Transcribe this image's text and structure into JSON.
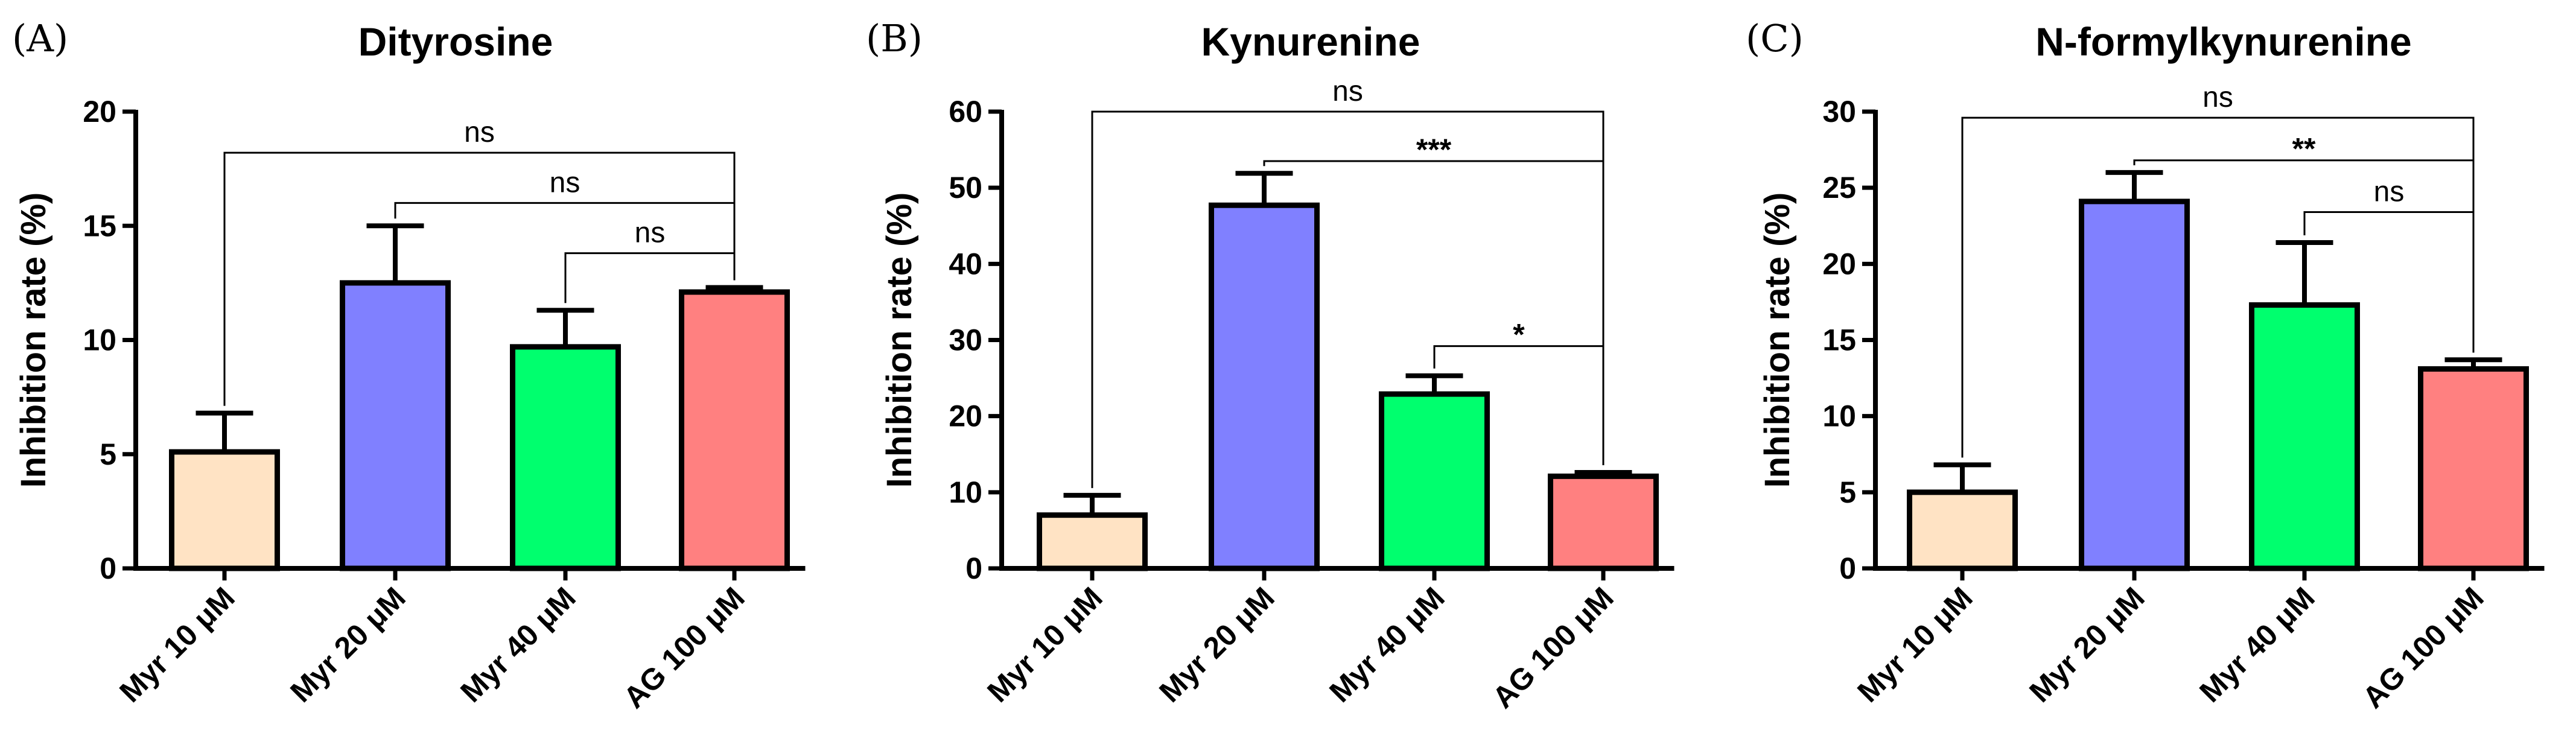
{
  "chart_data": [
    {
      "type": "bar",
      "panel": "(A)",
      "title": "Dityrosine",
      "ylabel": "Inhibition rate (%)",
      "xlabel": "",
      "categories": [
        "Myr 10 μM",
        "Myr 20 μM",
        "Myr 40 μM",
        "AG 100 μM"
      ],
      "values": [
        5.1,
        12.5,
        9.7,
        12.1
      ],
      "errors": [
        1.7,
        2.5,
        1.6,
        0.2
      ],
      "colors": [
        "#FFE3C4",
        "#8080FF",
        "#00FF6E",
        "#FF8080"
      ],
      "ylim": [
        0,
        20
      ],
      "yticks": [
        0,
        5,
        10,
        15,
        20
      ],
      "comparisons": [
        {
          "from": 0,
          "to": 3,
          "label": "ns",
          "y": 18.2
        },
        {
          "from": 1,
          "to": 3,
          "label": "ns",
          "y": 16.0
        },
        {
          "from": 2,
          "to": 3,
          "label": "ns",
          "y": 13.8
        }
      ]
    },
    {
      "type": "bar",
      "panel": "(B)",
      "title": "Kynurenine",
      "ylabel": "Inhibition rate (%)",
      "xlabel": "",
      "categories": [
        "Myr 10 μM",
        "Myr 20 μM",
        "Myr 40 μM",
        "AG 100 μM"
      ],
      "values": [
        7.0,
        47.7,
        22.9,
        12.1
      ],
      "errors": [
        2.6,
        4.2,
        2.4,
        0.5
      ],
      "colors": [
        "#FFE3C4",
        "#8080FF",
        "#00FF6E",
        "#FF8080"
      ],
      "ylim": [
        0,
        60
      ],
      "yticks": [
        0,
        10,
        20,
        30,
        40,
        50,
        60
      ],
      "comparisons": [
        {
          "from": 0,
          "to": 3,
          "label": "ns",
          "y": 60.0
        },
        {
          "from": 1,
          "to": 3,
          "label": "***",
          "y": 53.5
        },
        {
          "from": 2,
          "to": 3,
          "label": "*",
          "y": 29.2
        }
      ]
    },
    {
      "type": "bar",
      "panel": "(C)",
      "title": "N-formylkynurenine",
      "ylabel": "Inhibition rate (%)",
      "xlabel": "",
      "categories": [
        "Myr 10 μM",
        "Myr 20 μM",
        "Myr 40 μM",
        "AG 100 μM"
      ],
      "values": [
        5.0,
        24.1,
        17.3,
        13.1
      ],
      "errors": [
        1.8,
        1.9,
        4.1,
        0.6
      ],
      "colors": [
        "#FFE3C4",
        "#8080FF",
        "#00FF6E",
        "#FF8080"
      ],
      "ylim": [
        0,
        30
      ],
      "yticks": [
        0,
        5,
        10,
        15,
        20,
        25,
        30
      ],
      "comparisons": [
        {
          "from": 0,
          "to": 3,
          "label": "ns",
          "y": 29.6
        },
        {
          "from": 1,
          "to": 3,
          "label": "**",
          "y": 26.8
        },
        {
          "from": 2,
          "to": 3,
          "label": "ns",
          "y": 23.4
        }
      ]
    }
  ]
}
